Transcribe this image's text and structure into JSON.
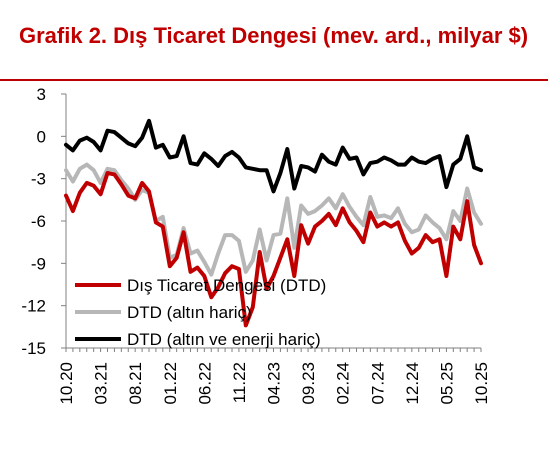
{
  "title": "Grafik 2. Dış Ticaret Dengesi (mev. ard., milyar $)",
  "chart_data": {
    "type": "line",
    "title": "Grafik 2. Dış Ticaret Dengesi (mev. ard., milyar $)",
    "xlabel": "",
    "ylabel": "",
    "ylim": [
      -15,
      3
    ],
    "yticks": [
      3,
      0,
      -3,
      -6,
      -9,
      -12,
      -15
    ],
    "xlim": [
      "10.20",
      "10.25"
    ],
    "xticks": [
      "10.20",
      "03.21",
      "08.21",
      "01.22",
      "06.22",
      "11.22",
      "04.23",
      "09.23",
      "02.24",
      "07.24",
      "12.24",
      "05.25",
      "10.25"
    ],
    "grid": false,
    "legend": "lower-left",
    "x": [
      "10.20",
      "11.20",
      "12.20",
      "01.21",
      "02.21",
      "03.21",
      "04.21",
      "05.21",
      "06.21",
      "07.21",
      "08.21",
      "09.21",
      "10.21",
      "11.21",
      "12.21",
      "01.22",
      "02.22",
      "03.22",
      "04.22",
      "05.22",
      "06.22",
      "07.22",
      "08.22",
      "09.22",
      "10.22",
      "11.22",
      "12.22",
      "01.23",
      "02.23",
      "03.23",
      "04.23",
      "05.23",
      "06.23",
      "07.23",
      "08.23",
      "09.23",
      "10.23",
      "11.23",
      "12.23",
      "01.24",
      "02.24",
      "03.24",
      "04.24",
      "05.24",
      "06.24",
      "07.24",
      "08.24",
      "09.24",
      "10.24",
      "11.24",
      "12.24",
      "01.25",
      "02.25",
      "03.25",
      "04.25",
      "05.25",
      "06.25",
      "07.25",
      "08.25",
      "09.25",
      "10.25"
    ],
    "series": [
      {
        "name": "Dış Ticaret Dengesi (DTD)",
        "color": "#c00000",
        "values": [
          -4.2,
          -5.3,
          -4.0,
          -3.3,
          -3.5,
          -4.1,
          -2.6,
          -2.7,
          -3.4,
          -4.2,
          -4.4,
          -3.3,
          -3.9,
          -6.1,
          -6.4,
          -9.2,
          -8.6,
          -6.8,
          -9.6,
          -9.3,
          -9.9,
          -11.4,
          -10.7,
          -9.7,
          -9.2,
          -9.4,
          -13.4,
          -12.1,
          -8.2,
          -10.8,
          -9.9,
          -8.6,
          -7.3,
          -9.9,
          -6.3,
          -7.6,
          -6.4,
          -6.0,
          -5.5,
          -6.3,
          -5.1,
          -6.1,
          -6.7,
          -7.5,
          -5.4,
          -6.4,
          -6.1,
          -6.4,
          -6.1,
          -7.4,
          -8.3,
          -7.9,
          -7.0,
          -7.5,
          -7.3,
          -9.9,
          -6.4,
          -7.3,
          -4.6,
          -7.7,
          -9.0
        ]
      },
      {
        "name": "DTD (altın hariç)",
        "color": "#b7b7b7",
        "values": [
          -2.4,
          -3.2,
          -2.3,
          -2.0,
          -2.4,
          -3.3,
          -2.3,
          -2.4,
          -3.1,
          -3.7,
          -4.5,
          -3.8,
          -4.0,
          -6.0,
          -5.7,
          -8.6,
          -8.4,
          -6.5,
          -8.3,
          -8.1,
          -8.9,
          -9.8,
          -8.3,
          -7.0,
          -7.0,
          -7.4,
          -9.6,
          -8.8,
          -6.6,
          -8.8,
          -7.0,
          -6.9,
          -4.4,
          -7.9,
          -4.9,
          -5.5,
          -5.3,
          -4.9,
          -4.4,
          -5.1,
          -4.1,
          -5.0,
          -5.7,
          -6.3,
          -4.3,
          -5.7,
          -5.6,
          -5.8,
          -5.1,
          -6.2,
          -6.8,
          -6.6,
          -5.6,
          -6.1,
          -6.5,
          -7.3,
          -5.3,
          -6.0,
          -3.7,
          -5.4,
          -6.2
        ]
      },
      {
        "name": "DTD (altın ve enerji hariç)",
        "color": "#000000",
        "values": [
          -0.6,
          -1.0,
          -0.3,
          -0.1,
          -0.4,
          -1.0,
          0.4,
          0.3,
          -0.1,
          -0.5,
          -0.7,
          -0.1,
          1.1,
          -0.8,
          -0.6,
          -1.5,
          -1.4,
          0.0,
          -1.9,
          -2.0,
          -1.2,
          -1.6,
          -2.1,
          -1.4,
          -1.1,
          -1.5,
          -2.2,
          -2.3,
          -2.4,
          -2.4,
          -3.9,
          -2.6,
          -0.9,
          -3.7,
          -2.1,
          -2.2,
          -2.5,
          -1.3,
          -1.8,
          -2.0,
          -0.8,
          -1.6,
          -1.5,
          -2.7,
          -1.9,
          -1.8,
          -1.5,
          -1.7,
          -2.0,
          -2.0,
          -1.5,
          -1.8,
          -1.9,
          -1.6,
          -1.4,
          -3.6,
          -2.0,
          -1.6,
          0.0,
          -2.2,
          -2.4
        ]
      }
    ]
  }
}
